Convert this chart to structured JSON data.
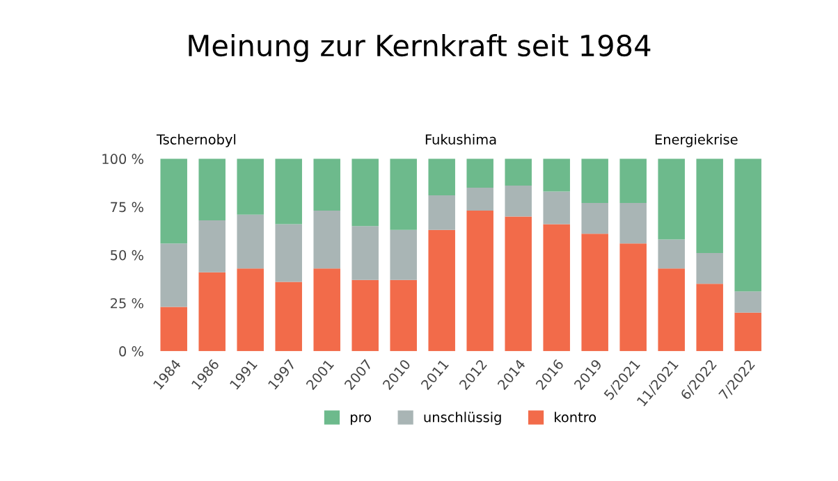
{
  "chart_data": {
    "type": "bar",
    "title": "Meinung zur Kernkraft seit 1984",
    "stacked": true,
    "categories": [
      "1984",
      "1986",
      "1991",
      "1997",
      "2001",
      "2007",
      "2010",
      "2011",
      "2012",
      "2014",
      "2016",
      "2019",
      "5/2021",
      "11/2021",
      "6/2022",
      "7/2022"
    ],
    "series": [
      {
        "name": "kontro",
        "color": "#f26b4a",
        "values": [
          23,
          41,
          43,
          36,
          43,
          37,
          37,
          63,
          73,
          70,
          66,
          61,
          56,
          43,
          35,
          20
        ]
      },
      {
        "name": "unschlüssig",
        "color": "#a9b5b5",
        "values": [
          33,
          27,
          28,
          30,
          30,
          28,
          26,
          18,
          12,
          16,
          17,
          16,
          21,
          15,
          16,
          11
        ]
      },
      {
        "name": "pro",
        "color": "#6dba8c",
        "values": [
          44,
          32,
          29,
          34,
          27,
          35,
          37,
          19,
          15,
          14,
          17,
          23,
          23,
          42,
          49,
          69
        ]
      }
    ],
    "ylim": [
      0,
      100
    ],
    "yticks": [
      {
        "value": 0,
        "label": "0 %"
      },
      {
        "value": 25,
        "label": "25 %"
      },
      {
        "value": 50,
        "label": "50 %"
      },
      {
        "value": 75,
        "label": "75 %"
      },
      {
        "value": 100,
        "label": "100 %"
      }
    ],
    "annotations": [
      {
        "text": "Tschernobyl",
        "x": "1984",
        "y": 100
      },
      {
        "text": "Fukushima",
        "x": "2011",
        "y": 100
      },
      {
        "text": "Energiekrise",
        "x": "11/2021",
        "y": 100
      }
    ],
    "legend": "bottom"
  }
}
